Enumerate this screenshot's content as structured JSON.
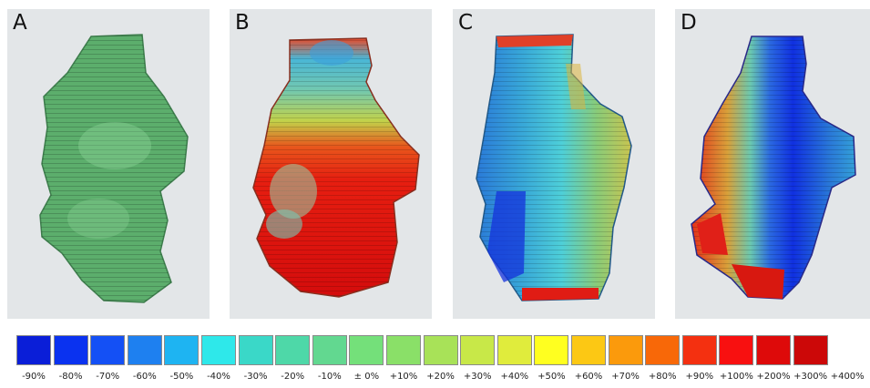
{
  "panels": [
    {
      "label": "A",
      "description_key": "uniform"
    },
    {
      "label": "B",
      "description_key": "top-heavy"
    },
    {
      "label": "C",
      "description_key": "split"
    },
    {
      "label": "D",
      "description_key": "dual"
    }
  ],
  "legend": {
    "colors": [
      "#0a1ed8",
      "#0a32f0",
      "#1450f5",
      "#1e80f0",
      "#1eb4f2",
      "#2ee8ea",
      "#3ad8c8",
      "#4ed8a8",
      "#62d890",
      "#74e07a",
      "#8ae068",
      "#a8e258",
      "#c8e848",
      "#e0ec3c",
      "#ffff20",
      "#fcc814",
      "#fb9a0c",
      "#f86808",
      "#f43010",
      "#f81010",
      "#de0a0a",
      "#cc0808"
    ],
    "labels": [
      "-90%",
      "-80%",
      "-70%",
      "-60%",
      "-50%",
      "-40%",
      "-30%",
      "-20%",
      "-10%",
      "± 0%",
      "+10%",
      "+20%",
      "+30%",
      "+40%",
      "+50%",
      "+60%",
      "+70%",
      "+80%",
      "+90%",
      "+100%",
      "+200%",
      "+300%",
      "+400%"
    ]
  }
}
